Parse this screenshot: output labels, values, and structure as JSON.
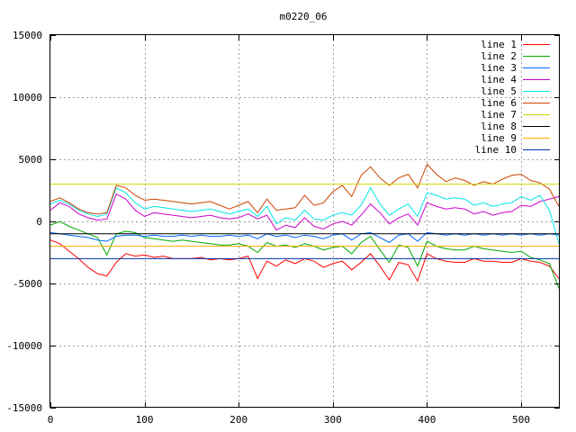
{
  "chart_data": {
    "type": "line",
    "title": "m0220_06",
    "xlabel": "",
    "ylabel": "",
    "xlim": [
      0,
      541
    ],
    "ylim": [
      -15000,
      15000
    ],
    "x_ticks": [
      0,
      100,
      200,
      300,
      400,
      500
    ],
    "y_ticks": [
      -15000,
      -10000,
      -5000,
      0,
      5000,
      10000,
      15000
    ],
    "grid": true,
    "legend_position": "top-right",
    "x": [
      0,
      10,
      20,
      30,
      40,
      50,
      60,
      70,
      80,
      90,
      100,
      110,
      120,
      130,
      140,
      150,
      160,
      170,
      180,
      190,
      200,
      210,
      220,
      230,
      240,
      250,
      260,
      270,
      280,
      290,
      300,
      310,
      320,
      330,
      340,
      350,
      360,
      370,
      380,
      390,
      400,
      410,
      420,
      430,
      440,
      450,
      460,
      470,
      480,
      490,
      500,
      510,
      520,
      530,
      540
    ],
    "series": [
      {
        "name": "line 1",
        "color": "#ff0000",
        "values": [
          -1500,
          -1800,
          -2400,
          -3000,
          -3700,
          -4200,
          -4400,
          -3300,
          -2600,
          -2800,
          -2700,
          -2900,
          -2800,
          -3000,
          -3000,
          -3000,
          -2900,
          -3100,
          -3000,
          -3100,
          -3000,
          -2800,
          -4600,
          -3200,
          -3600,
          -3100,
          -3400,
          -3000,
          -3200,
          -3700,
          -3400,
          -3200,
          -3900,
          -3300,
          -2600,
          -3600,
          -4700,
          -3300,
          -3500,
          -4800,
          -2600,
          -3000,
          -3200,
          -3300,
          -3300,
          -3000,
          -3200,
          -3200,
          -3300,
          -3300,
          -3000,
          -3200,
          -3300,
          -3600,
          -4600
        ]
      },
      {
        "name": "line 2",
        "color": "#00aa00",
        "values": [
          -300,
          0,
          -400,
          -700,
          -1000,
          -1300,
          -2700,
          -1000,
          -800,
          -900,
          -1300,
          -1400,
          -1500,
          -1600,
          -1500,
          -1600,
          -1700,
          -1800,
          -1900,
          -1900,
          -1800,
          -2000,
          -2500,
          -1700,
          -2000,
          -1900,
          -2100,
          -1800,
          -2000,
          -2300,
          -2100,
          -2000,
          -2600,
          -1700,
          -1200,
          -2300,
          -3300,
          -1900,
          -2100,
          -3600,
          -1600,
          -2000,
          -2200,
          -2300,
          -2300,
          -2000,
          -2200,
          -2300,
          -2400,
          -2500,
          -2400,
          -2900,
          -3100,
          -3400,
          -5400
        ]
      },
      {
        "name": "line 3",
        "color": "#0066ff",
        "values": [
          -900,
          -1000,
          -1100,
          -1200,
          -1300,
          -1500,
          -1600,
          -1200,
          -1100,
          -1100,
          -1200,
          -1100,
          -1200,
          -1200,
          -1100,
          -1200,
          -1100,
          -1200,
          -1200,
          -1100,
          -1200,
          -1100,
          -1400,
          -1000,
          -1200,
          -1100,
          -1300,
          -1100,
          -1200,
          -1400,
          -1100,
          -1000,
          -1500,
          -1000,
          -900,
          -1300,
          -1700,
          -1100,
          -1000,
          -1600,
          -900,
          -1000,
          -1100,
          -1000,
          -1100,
          -1000,
          -1100,
          -1000,
          -1100,
          -1000,
          -1100,
          -1000,
          -1100,
          -1000,
          -1100
        ]
      },
      {
        "name": "line 4",
        "color": "#cc00cc",
        "values": [
          900,
          1500,
          1200,
          600,
          300,
          100,
          200,
          2200,
          1800,
          900,
          400,
          700,
          600,
          500,
          400,
          300,
          400,
          500,
          300,
          200,
          300,
          600,
          200,
          500,
          -700,
          -300,
          -500,
          300,
          -400,
          -600,
          -200,
          0,
          -300,
          500,
          1400,
          700,
          -200,
          300,
          600,
          -300,
          1500,
          1200,
          1000,
          1100,
          1000,
          600,
          800,
          500,
          700,
          800,
          1300,
          1200,
          1600,
          1800,
          2000
        ]
      },
      {
        "name": "line 5",
        "color": "#00e5e5",
        "values": [
          1400,
          1700,
          1400,
          900,
          600,
          400,
          600,
          2700,
          2300,
          1500,
          1000,
          1200,
          1100,
          1000,
          900,
          800,
          900,
          1000,
          800,
          600,
          800,
          1000,
          400,
          1200,
          -200,
          300,
          100,
          900,
          200,
          100,
          500,
          700,
          500,
          1300,
          2700,
          1400,
          500,
          1000,
          1400,
          400,
          2300,
          2100,
          1800,
          1900,
          1800,
          1300,
          1500,
          1200,
          1400,
          1500,
          2000,
          1700,
          2100,
          900,
          -1800
        ]
      },
      {
        "name": "line 6",
        "color": "#cc4400",
        "values": [
          1600,
          1900,
          1500,
          1000,
          700,
          600,
          700,
          2900,
          2700,
          2100,
          1700,
          1800,
          1700,
          1600,
          1500,
          1400,
          1500,
          1600,
          1300,
          1000,
          1300,
          1600,
          700,
          1800,
          900,
          1000,
          1100,
          2100,
          1300,
          1500,
          2400,
          2900,
          2000,
          3700,
          4400,
          3500,
          2900,
          3500,
          3800,
          2700,
          4600,
          3800,
          3200,
          3500,
          3300,
          2900,
          3200,
          3000,
          3400,
          3700,
          3800,
          3300,
          3100,
          2600,
          1200
        ]
      },
      {
        "name": "line 7",
        "color": "#d4d400",
        "values": [
          3000,
          3000,
          3000,
          3000,
          3000,
          3000,
          3000,
          3000,
          3000,
          3000,
          3000,
          3000,
          3000,
          3000,
          3000,
          3000,
          3000,
          3000,
          3000,
          3000,
          3000,
          3000,
          3000,
          3000,
          3000,
          3000,
          3000,
          3000,
          3000,
          3000,
          3000,
          3000,
          3000,
          3000,
          3000,
          3000,
          3000,
          3000,
          3000,
          3000,
          3000,
          3000,
          3000,
          3000,
          3000,
          3000,
          3000,
          3000,
          3000,
          3000,
          3000,
          3000,
          3000,
          3000,
          3000
        ]
      },
      {
        "name": "line 8",
        "color": "#000000",
        "values": [
          -1000,
          -1000,
          -1000,
          -1000,
          -1000,
          -1000,
          -1000,
          -1000,
          -1000,
          -1000,
          -1000,
          -1000,
          -1000,
          -1000,
          -1000,
          -1000,
          -1000,
          -1000,
          -1000,
          -1000,
          -1000,
          -1000,
          -1000,
          -1000,
          -1000,
          -1000,
          -1000,
          -1000,
          -1000,
          -1000,
          -1000,
          -1000,
          -1000,
          -1000,
          -1000,
          -1000,
          -1000,
          -1000,
          -1000,
          -1000,
          -1000,
          -1000,
          -1000,
          -1000,
          -1000,
          -1000,
          -1000,
          -1000,
          -1000,
          -1000,
          -1000,
          -1000,
          -1000,
          -1000,
          -1000
        ]
      },
      {
        "name": "line 9",
        "color": "#ffaa00",
        "values": [
          -2000,
          -2000,
          -2000,
          -2000,
          -2000,
          -2000,
          -2000,
          -2000,
          -2000,
          -2000,
          -2000,
          -2000,
          -2000,
          -2000,
          -2000,
          -2000,
          -2000,
          -2000,
          -2000,
          -2000,
          -2000,
          -2000,
          -2000,
          -2000,
          -2000,
          -2000,
          -2000,
          -2000,
          -2000,
          -2000,
          -2000,
          -2000,
          -2000,
          -2000,
          -2000,
          -2000,
          -2000,
          -2000,
          -2000,
          -2000,
          -2000,
          -2000,
          -2000,
          -2000,
          -2000,
          -2000,
          -2000,
          -2000,
          -2000,
          -2000,
          -2000,
          -2000,
          -2000,
          -2000,
          -2000
        ]
      },
      {
        "name": "line 10",
        "color": "#0033aa",
        "values": [
          -3000,
          -3000,
          -3000,
          -3000,
          -3000,
          -3000,
          -3000,
          -3000,
          -3000,
          -3000,
          -3000,
          -3000,
          -3000,
          -3000,
          -3000,
          -3000,
          -3000,
          -3000,
          -3000,
          -3000,
          -3000,
          -3000,
          -3000,
          -3000,
          -3000,
          -3000,
          -3000,
          -3000,
          -3000,
          -3000,
          -3000,
          -3000,
          -3000,
          -3000,
          -3000,
          -3000,
          -3000,
          -3000,
          -3000,
          -3000,
          -3000,
          -3000,
          -3000,
          -3000,
          -3000,
          -3000,
          -3000,
          -3000,
          -3000,
          -3000,
          -3000,
          -3000,
          -3000,
          -3000,
          -3000
        ]
      }
    ]
  }
}
